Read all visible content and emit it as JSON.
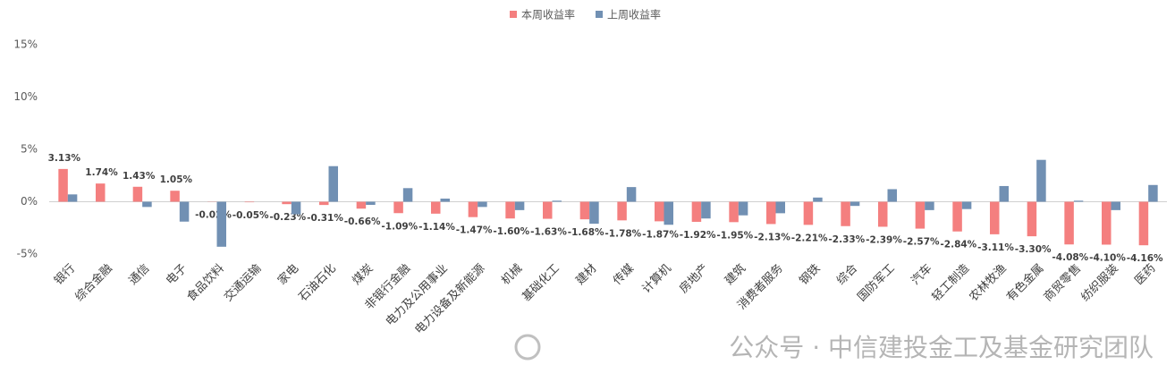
{
  "chart_data": {
    "type": "bar",
    "categories": [
      "银行",
      "综合金融",
      "通信",
      "电子",
      "食品饮料",
      "交通运输",
      "家电",
      "石油石化",
      "煤炭",
      "非银行金融",
      "电力及公用事业",
      "电力设备及新能源",
      "机械",
      "基础化工",
      "建材",
      "传媒",
      "计算机",
      "房地产",
      "建筑",
      "消费者服务",
      "钢铁",
      "综合",
      "国防军工",
      "汽车",
      "轻工制造",
      "农林牧渔",
      "有色金属",
      "商贸零售",
      "纺织服装",
      "医药"
    ],
    "series": [
      {
        "name": "本周收益率",
        "color": "#f47f7f",
        "values": [
          3.13,
          1.74,
          1.43,
          1.05,
          -0.02,
          -0.05,
          -0.23,
          -0.31,
          -0.66,
          -1.09,
          -1.14,
          -1.47,
          -1.6,
          -1.63,
          -1.68,
          -1.78,
          -1.87,
          -1.92,
          -1.95,
          -2.13,
          -2.21,
          -2.33,
          -2.39,
          -2.57,
          -2.84,
          -3.11,
          -3.3,
          -4.08,
          -4.1,
          -4.16
        ],
        "value_labels": [
          "3.13%",
          "1.74%",
          "1.43%",
          "1.05%",
          "-0.02%",
          "-0.05%",
          "-0.23%",
          "-0.31%",
          "-0.66%",
          "-1.09%",
          "-1.14%",
          "-1.47%",
          "-1.60%",
          "-1.63%",
          "-1.68%",
          "-1.78%",
          "-1.87%",
          "-1.92%",
          "-1.95%",
          "-2.13%",
          "-2.21%",
          "-2.33%",
          "-2.39%",
          "-2.57%",
          "-2.84%",
          "-3.11%",
          "-3.30%",
          "-4.08%",
          "-4.10%",
          "-4.16%"
        ]
      },
      {
        "name": "上周收益率",
        "color": "#7190b3",
        "values": [
          0.7,
          0,
          -0.5,
          -1.9,
          -4.3,
          0,
          -1.2,
          3.4,
          -0.3,
          1.3,
          0.3,
          -0.5,
          -0.8,
          0.1,
          -2.1,
          1.4,
          -2.2,
          -1.6,
          -1.3,
          -1.1,
          0.4,
          -0.4,
          1.2,
          -0.8,
          -0.7,
          1.5,
          4.0,
          0.1,
          -0.8,
          1.6
        ]
      }
    ],
    "ylim": [
      -5,
      15
    ],
    "yticks": [
      {
        "value": -5,
        "label": "-5%"
      },
      {
        "value": 0,
        "label": "0%"
      },
      {
        "value": 5,
        "label": "5%"
      },
      {
        "value": 10,
        "label": "10%"
      },
      {
        "value": 15,
        "label": "15%"
      }
    ],
    "grid": false,
    "legend": "top",
    "watermark": "公众号 · 中信建投金工及基金研究团队"
  }
}
